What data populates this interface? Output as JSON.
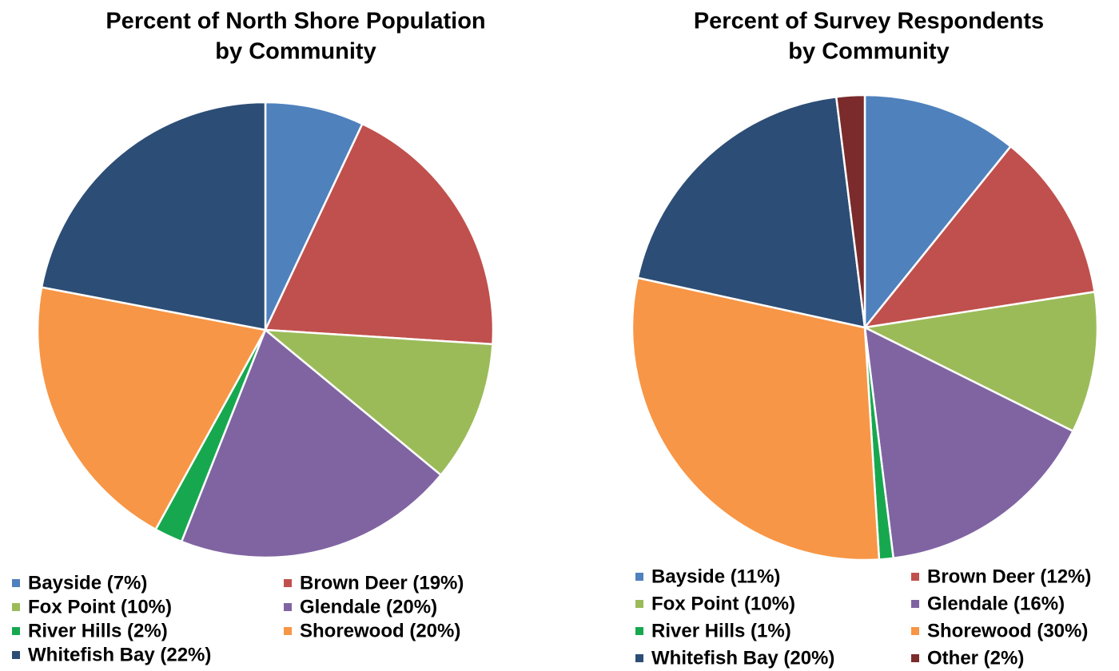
{
  "chart_data": [
    {
      "type": "pie",
      "title": [
        "Percent of North Shore Population",
        "by Community"
      ],
      "categories": [
        "Bayside (7%)",
        "Brown Deer (19%)",
        "Fox Point (10%)",
        "Glendale (20%)",
        "River Hills (2%)",
        "Shorewood (20%)",
        "Whitefish Bay (22%)"
      ],
      "values": [
        7,
        19,
        10,
        20,
        2,
        20,
        22
      ],
      "colors": [
        "#4f81bd",
        "#c0504d",
        "#9bbb59",
        "#8064a2",
        "#17a84f",
        "#f79646",
        "#2c4d75"
      ],
      "legend": "bottom"
    },
    {
      "type": "pie",
      "title": [
        "Percent of Survey Respondents",
        "by Community"
      ],
      "categories": [
        "Bayside (11%)",
        "Brown Deer (12%)",
        "Fox Point (10%)",
        "Glendale (16%)",
        "River Hills (1%)",
        "Shorewood (30%)",
        "Whitefish Bay (20%)",
        "Other (2%)"
      ],
      "values": [
        11,
        12,
        10,
        16,
        1,
        30,
        20,
        2
      ],
      "colors": [
        "#4f81bd",
        "#c0504d",
        "#9bbb59",
        "#8064a2",
        "#17a84f",
        "#f79646",
        "#2c4d75",
        "#7b2b2b"
      ],
      "legend": "bottom"
    }
  ]
}
